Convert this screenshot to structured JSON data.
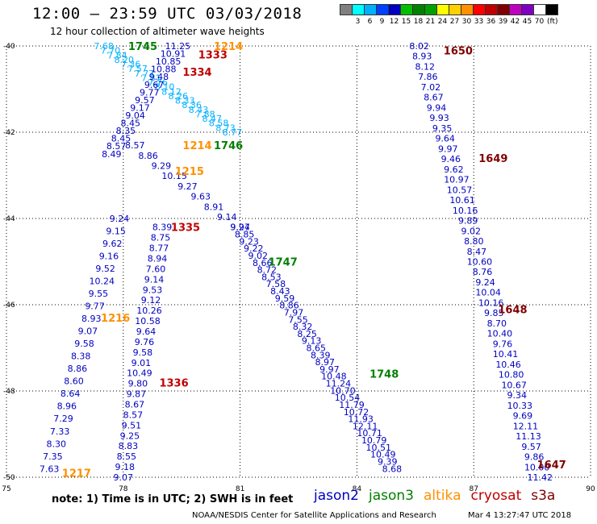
{
  "header": {
    "title": "12:00 – 23:59 UTC 03/03/2018",
    "subtitle": "12 hour collection of altimeter wave heights"
  },
  "legend": {
    "unit": "(ft)",
    "colors": [
      "#808080",
      "#00ffff",
      "#00b0ff",
      "#0040ff",
      "#0000c0",
      "#00c000",
      "#008000",
      "#00a000",
      "#ffff00",
      "#ffd000",
      "#ff9000",
      "#ff0000",
      "#c00000",
      "#800000",
      "#c000c0",
      "#8000c0",
      "#ffffff",
      "#000000"
    ],
    "labels": [
      "3",
      "6",
      "9",
      "12",
      "15",
      "18",
      "21",
      "24",
      "27",
      "30",
      "33",
      "36",
      "39",
      "42",
      "45",
      "70"
    ]
  },
  "footer": {
    "note": "note: 1) Time is in UTC; 2) SWH is in feet",
    "credit": "NOAA/NESDIS Center for Satellite Applications and Research",
    "stamp": "Mar 4 13:27:47 UTC 2018"
  },
  "missions": [
    {
      "name": "jason2",
      "color": "#0000c0"
    },
    {
      "name": "jason3",
      "color": "#008000"
    },
    {
      "name": "altika",
      "color": "#ff9000"
    },
    {
      "name": "cryosat",
      "color": "#c00000"
    },
    {
      "name": "s3a",
      "color": "#800000"
    }
  ],
  "chart_data": {
    "type": "scatter",
    "xlim": [
      75,
      90
    ],
    "ylim": [
      -50,
      -40
    ],
    "x_ticks": [
      "75",
      "78",
      "81",
      "84",
      "87",
      "90"
    ],
    "y_ticks": [
      "-40",
      "-42",
      "-44",
      "-46",
      "-48",
      "-50"
    ],
    "tracks": [
      {
        "lon_start": 77.5,
        "lat_start": -40.0,
        "lon_end": 80.8,
        "lat_end": -42.0,
        "color": "#00b0ff",
        "values": [
          "7.68",
          "7.70",
          "7.84",
          "8.20",
          "7.36",
          "7.57",
          "7.77",
          "7.81",
          "7.76",
          "8.10",
          "8.12",
          "8.26",
          "8.33",
          "8.36",
          "8.43",
          "7.88",
          "8.47",
          "8.58",
          "8.73",
          "8.77"
        ]
      },
      {
        "lon_start": 81.0,
        "lat_start": -44.2,
        "lon_end": 78.3,
        "lat_end": -42.3,
        "color": "#0000c0",
        "values": [
          "9.24",
          "9.14",
          "8.91",
          "9.63",
          "9.27",
          "10.15",
          "9.29",
          "8.86",
          "8.57"
        ]
      },
      {
        "lon_start": 77.9,
        "lat_start": -44.0,
        "lon_end": 76.1,
        "lat_end": -49.8,
        "color": "#0000c0",
        "values": [
          "9.24",
          "9.15",
          "9.62",
          "9.16",
          "9.52",
          "10.24",
          "9.55",
          "9.77",
          "8.93",
          "9.07",
          "9.58",
          "8.38",
          "8.86",
          "8.60",
          "8.64",
          "8.96",
          "7.29",
          "7.33",
          "8.30",
          "7.35",
          "7.63"
        ]
      },
      {
        "lon_start": 79.4,
        "lat_start": -40.0,
        "lon_end": 77.7,
        "lat_end": -42.5,
        "color": "#0000c0",
        "values": [
          "11.25",
          "10.91",
          "10.85",
          "10.88",
          "9.48",
          "9.67",
          "9.77",
          "9.57",
          "9.17",
          "9.04",
          "8.45",
          "8.35",
          "8.45",
          "8.57",
          "8.49"
        ]
      },
      {
        "lon_start": 81.0,
        "lat_start": -44.2,
        "lon_end": 84.9,
        "lat_end": -49.8,
        "color": "#0000c0",
        "values": [
          "9.97",
          "8.85",
          "9.23",
          "9.22",
          "9.02",
          "8.66",
          "8.72",
          "8.53",
          "7.58",
          "8.43",
          "9.59",
          "8.86",
          "7.97",
          "7.55",
          "8.32",
          "8.25",
          "9.13",
          "8.65",
          "8.39",
          "8.97",
          "9.97",
          "10.48",
          "11.24",
          "10.70",
          "10.54",
          "11.79",
          "10.72",
          "11.93",
          "12.11",
          "10.71",
          "10.79",
          "10.51",
          "10.49",
          "9.39",
          "8.68"
        ]
      },
      {
        "lon_start": 79.0,
        "lat_start": -44.2,
        "lon_end": 78.0,
        "lat_end": -50.0,
        "color": "#0000c0",
        "values": [
          "8.39",
          "8.75",
          "8.77",
          "8.94",
          "7.60",
          "9.14",
          "9.53",
          "9.12",
          "10.26",
          "10.58",
          "9.64",
          "9.76",
          "9.58",
          "9.01",
          "10.49",
          "9.80",
          "9.87",
          "8.67",
          "8.57",
          "9.51",
          "9.25",
          "8.83",
          "8.55",
          "9.18",
          "9.07"
        ]
      },
      {
        "lon_start": 85.6,
        "lat_start": -40.0,
        "lon_end": 88.7,
        "lat_end": -50.0,
        "color": "#0000c0",
        "values": [
          "8.02",
          "8.93",
          "8.12",
          "7.86",
          "7.02",
          "8.67",
          "9.94",
          "9.93",
          "9.35",
          "9.64",
          "9.97",
          "9.46",
          "9.62",
          "10.97",
          "10.57",
          "10.61",
          "10.16",
          "9.89",
          "9.02",
          "8.80",
          "8.47",
          "10.60",
          "8.76",
          "9.24",
          "10.04",
          "10.16",
          "9.85",
          "8.70",
          "10.40",
          "9.76",
          "10.41",
          "10.46",
          "10.80",
          "10.67",
          "9.34",
          "10.33",
          "9.69",
          "12.11",
          "11.13",
          "9.57",
          "9.86",
          "10.00",
          "11.42"
        ]
      }
    ],
    "pass_labels": [
      {
        "text": "1745",
        "lon": 78.5,
        "lat": -40.0,
        "color": "#008000"
      },
      {
        "text": "1214",
        "lon": 80.7,
        "lat": -40.0,
        "color": "#ff9000"
      },
      {
        "text": "1333",
        "lon": 80.3,
        "lat": -40.2,
        "color": "#c00000"
      },
      {
        "text": "1334",
        "lon": 79.9,
        "lat": -40.6,
        "color": "#c00000"
      },
      {
        "text": "1650",
        "lon": 86.6,
        "lat": -40.1,
        "color": "#800000"
      },
      {
        "text": "1214",
        "lon": 79.9,
        "lat": -42.3,
        "color": "#ff9000"
      },
      {
        "text": "1746",
        "lon": 80.7,
        "lat": -42.3,
        "color": "#008000"
      },
      {
        "text": "1649",
        "lon": 87.5,
        "lat": -42.6,
        "color": "#800000"
      },
      {
        "text": "1215",
        "lon": 79.7,
        "lat": -42.9,
        "color": "#ff9000"
      },
      {
        "text": "1335",
        "lon": 79.6,
        "lat": -44.2,
        "color": "#c00000"
      },
      {
        "text": "1747",
        "lon": 82.1,
        "lat": -45.0,
        "color": "#008000"
      },
      {
        "text": "1648",
        "lon": 88.0,
        "lat": -46.1,
        "color": "#800000"
      },
      {
        "text": "1216",
        "lon": 77.8,
        "lat": -46.3,
        "color": "#ff9000"
      },
      {
        "text": "1336",
        "lon": 79.3,
        "lat": -47.8,
        "color": "#c00000"
      },
      {
        "text": "1748",
        "lon": 84.7,
        "lat": -47.6,
        "color": "#008000"
      },
      {
        "text": "1647",
        "lon": 89.0,
        "lat": -49.7,
        "color": "#800000"
      },
      {
        "text": "1217",
        "lon": 76.8,
        "lat": -49.9,
        "color": "#ff9000"
      }
    ]
  }
}
